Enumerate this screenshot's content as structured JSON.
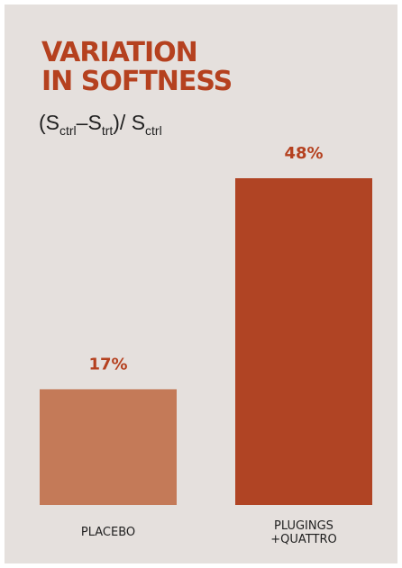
{
  "chart_data": {
    "type": "bar",
    "title": "VARIATION IN SOFTNESS",
    "title_lines": [
      "VARIATION",
      "IN SOFTNESS"
    ],
    "subtitle": {
      "open": "(S",
      "sub1": "ctrl",
      "minus": "–S",
      "sub2": "trt",
      "mid": ")/ S",
      "sub3": "ctrl"
    },
    "categories": [
      "PLACEBO",
      "PLUGINGS +QUATTRO"
    ],
    "category_label_lines": [
      [
        "PLACEBO"
      ],
      [
        "PLUGINGS",
        "+QUATTRO"
      ]
    ],
    "values": [
      17,
      48
    ],
    "value_labels": [
      "17%",
      "48%"
    ],
    "unit": "%",
    "ylim": [
      0,
      48
    ],
    "grid": false,
    "legend": "none",
    "colors": {
      "bars": [
        "#c47a58",
        "#b04424"
      ],
      "value_text": "#b5411f",
      "panel_background": "#e5e0dd"
    }
  }
}
